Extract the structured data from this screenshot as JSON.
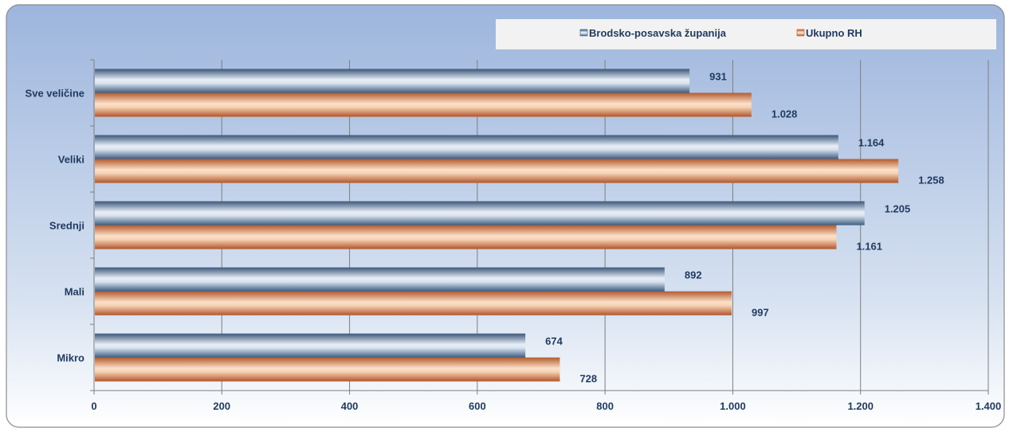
{
  "chart_data": {
    "type": "bar",
    "orientation": "horizontal",
    "categories": [
      "Sve veličine",
      "Veliki",
      "Srednji",
      "Mali",
      "Mikro"
    ],
    "series": [
      {
        "name": "Brodsko-posavska županija",
        "values": [
          931,
          1164,
          1205,
          892,
          674
        ],
        "labels": [
          "931",
          "1.164",
          "1.205",
          "892",
          "674"
        ],
        "color": "#3F5E82"
      },
      {
        "name": "Ukupno RH",
        "values": [
          1028,
          1258,
          1161,
          997,
          728
        ],
        "labels": [
          "1.028",
          "1.258",
          "1.161",
          "997",
          "728"
        ],
        "color": "#B5562A"
      }
    ],
    "xlim": [
      0,
      1400
    ],
    "xticks": [
      0,
      200,
      400,
      600,
      800,
      1000,
      1200,
      1400
    ],
    "xtick_labels": [
      "0",
      "200",
      "400",
      "600",
      "800",
      "1.000",
      "1.200",
      "1.400"
    ],
    "grid": "vertical",
    "legend_position": "top-right"
  },
  "colors": {
    "background_top": "#9DB5DD",
    "background_bottom": "#FFFFFF",
    "label_text": "#1F3A5F",
    "gridline": "#7F7F7F"
  }
}
